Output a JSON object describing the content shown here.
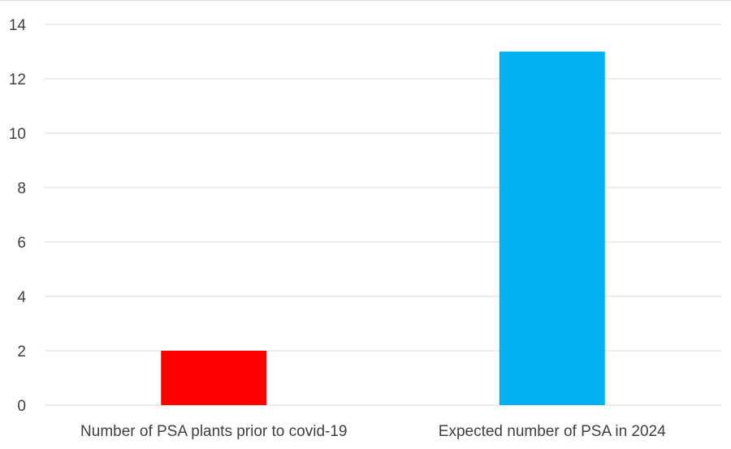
{
  "chart_data": {
    "type": "bar",
    "title": "",
    "xlabel": "",
    "ylabel": "",
    "categories": [
      "Number of PSA plants prior to covid-19",
      "Expected number of PSA in 2024"
    ],
    "values": [
      2,
      13
    ],
    "bar_colors": [
      "#ff0000",
      "#00b0f0"
    ],
    "ylim": [
      0,
      14
    ],
    "yticks": [
      0,
      2,
      4,
      6,
      8,
      10,
      12,
      14
    ],
    "grid": true,
    "legend": "none"
  },
  "colors": {
    "gridline": "#d9d9d9",
    "text": "#404040"
  }
}
